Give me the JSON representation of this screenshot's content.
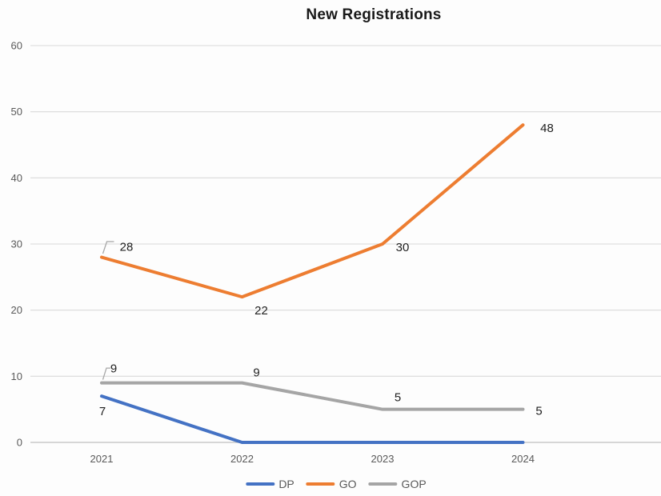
{
  "chart_data": {
    "type": "line",
    "title": "New Registrations",
    "categories": [
      "2021",
      "2022",
      "2023",
      "2024"
    ],
    "series": [
      {
        "name": "DP",
        "color": "#4472C4",
        "values": [
          7,
          0,
          0,
          0
        ],
        "show_labels": [
          true,
          false,
          false,
          false
        ]
      },
      {
        "name": "GO",
        "color": "#ED7D31",
        "values": [
          28,
          22,
          30,
          48
        ],
        "show_labels": [
          true,
          true,
          true,
          true
        ]
      },
      {
        "name": "GOP",
        "color": "#A5A5A5",
        "values": [
          9,
          9,
          5,
          5
        ],
        "show_labels": [
          true,
          true,
          true,
          true
        ]
      }
    ],
    "xlabel": "",
    "ylabel": "",
    "ylim": [
      0,
      60
    ],
    "y_ticks": [
      0,
      10,
      20,
      30,
      40,
      50,
      60
    ],
    "grid": true,
    "legend_position": "bottom",
    "styles": {
      "gridline_color": "#D9D9D9",
      "axis_line_color": "#BFBFBF",
      "axis_text_color": "#595959",
      "data_label_color": "#1f1f1f",
      "callout_color": "#A6A6A6",
      "title_color": "#1a1a1a"
    }
  }
}
